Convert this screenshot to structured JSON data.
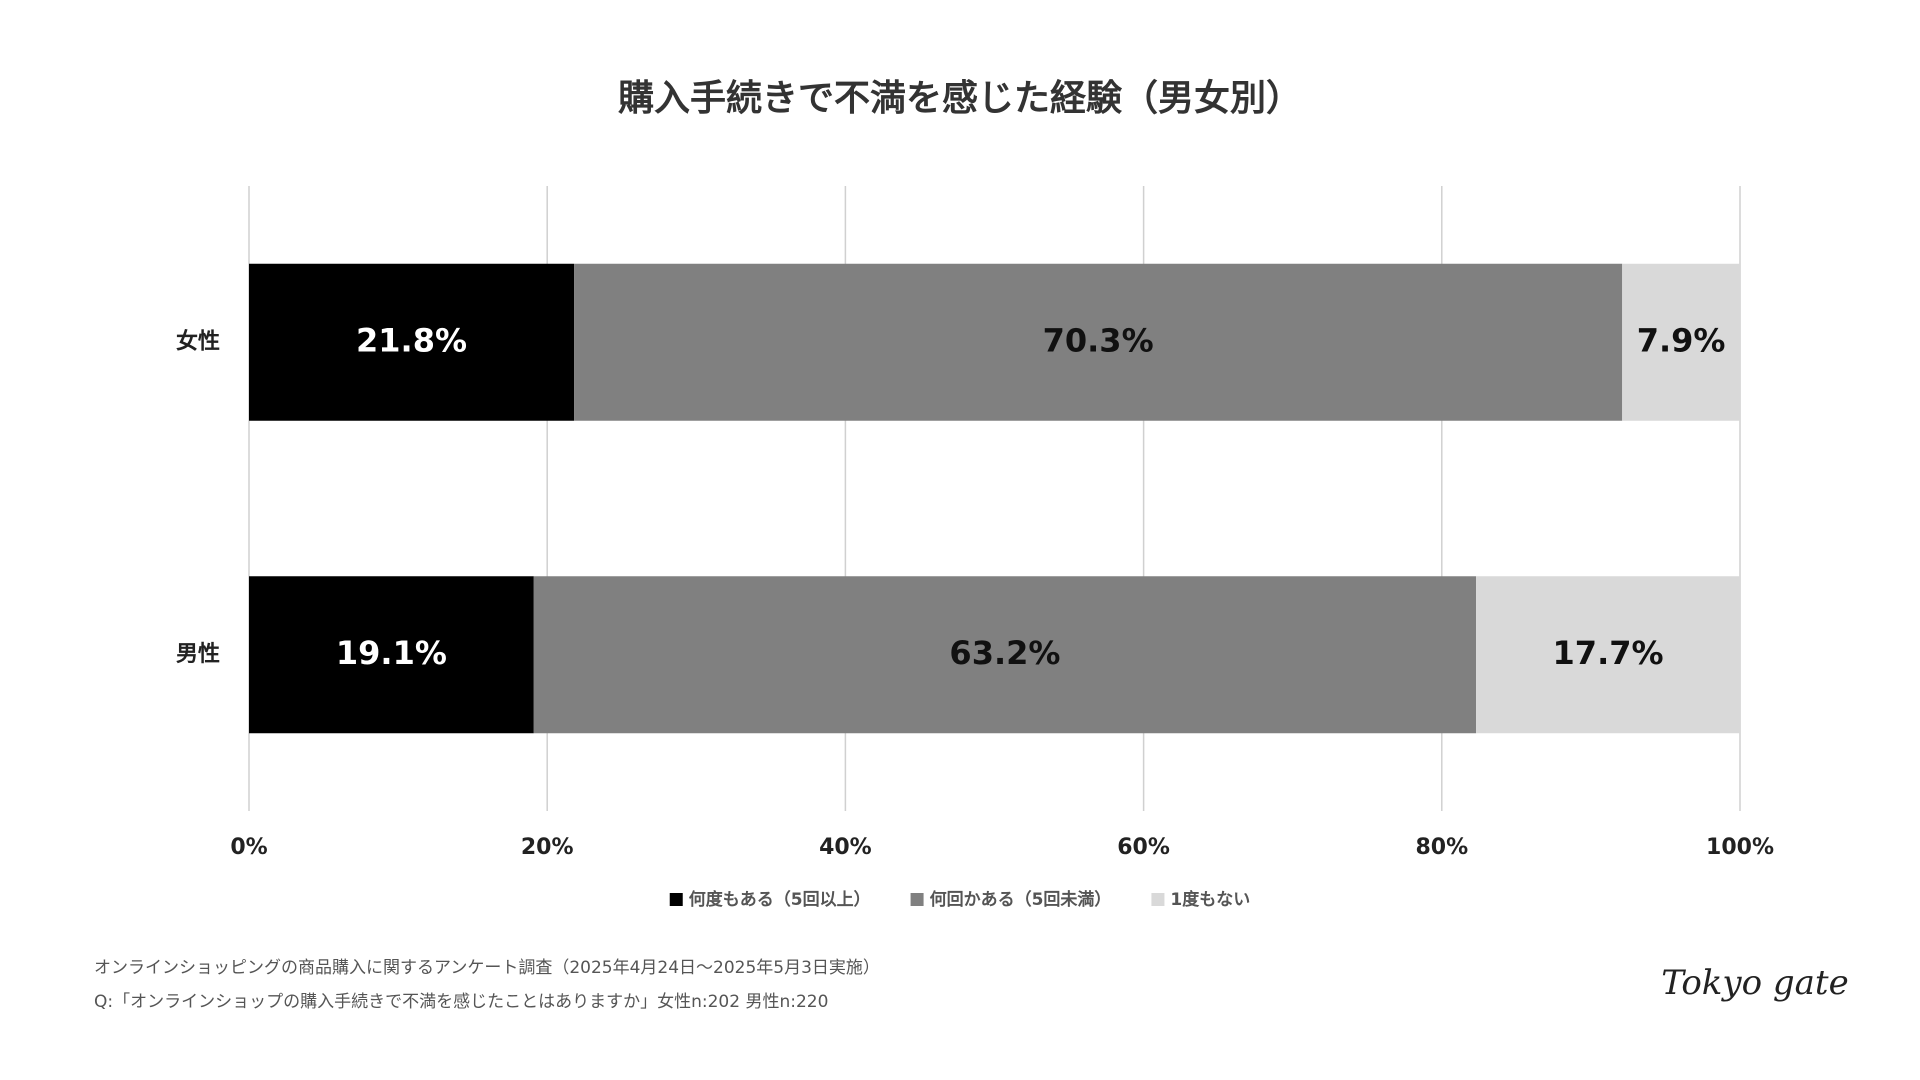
{
  "chart_data": {
    "type": "stacked_barh",
    "title": "購入手続きで不満を感じた経験（男女別）",
    "categories": [
      "女性",
      "男性"
    ],
    "series": [
      {
        "name": "何度もある（5回以上）",
        "color": "#000000",
        "values": [
          21.8,
          19.1
        ],
        "value_labels": [
          "21.8%",
          "19.1%"
        ]
      },
      {
        "name": "何回かある（5回未満）",
        "color": "#808080",
        "values": [
          70.3,
          63.2
        ],
        "value_labels": [
          "70.3%",
          "63.2%"
        ]
      },
      {
        "name": "1度もない",
        "color": "#d9d9d9",
        "values": [
          7.9,
          17.7
        ],
        "value_labels": [
          "7.9%",
          "17.7%"
        ]
      }
    ],
    "xlim": [
      0,
      100
    ],
    "xticks": [
      {
        "value": 0,
        "label": "0%"
      },
      {
        "value": 20,
        "label": "20%"
      },
      {
        "value": 40,
        "label": "40%"
      },
      {
        "value": 60,
        "label": "60%"
      },
      {
        "value": 80,
        "label": "80%"
      },
      {
        "value": 100,
        "label": "100%"
      }
    ],
    "grid": true,
    "legend": "bottom",
    "notes": [
      "オンラインショッピングの商品購入に関するアンケート調査（2025年4月24日〜2025年5月3日実施）",
      "Q:「オンラインショップの購入手続きで不満を感じたことはありますか」女性n:202 男性n:220"
    ],
    "logo": "Tokyo gate"
  }
}
